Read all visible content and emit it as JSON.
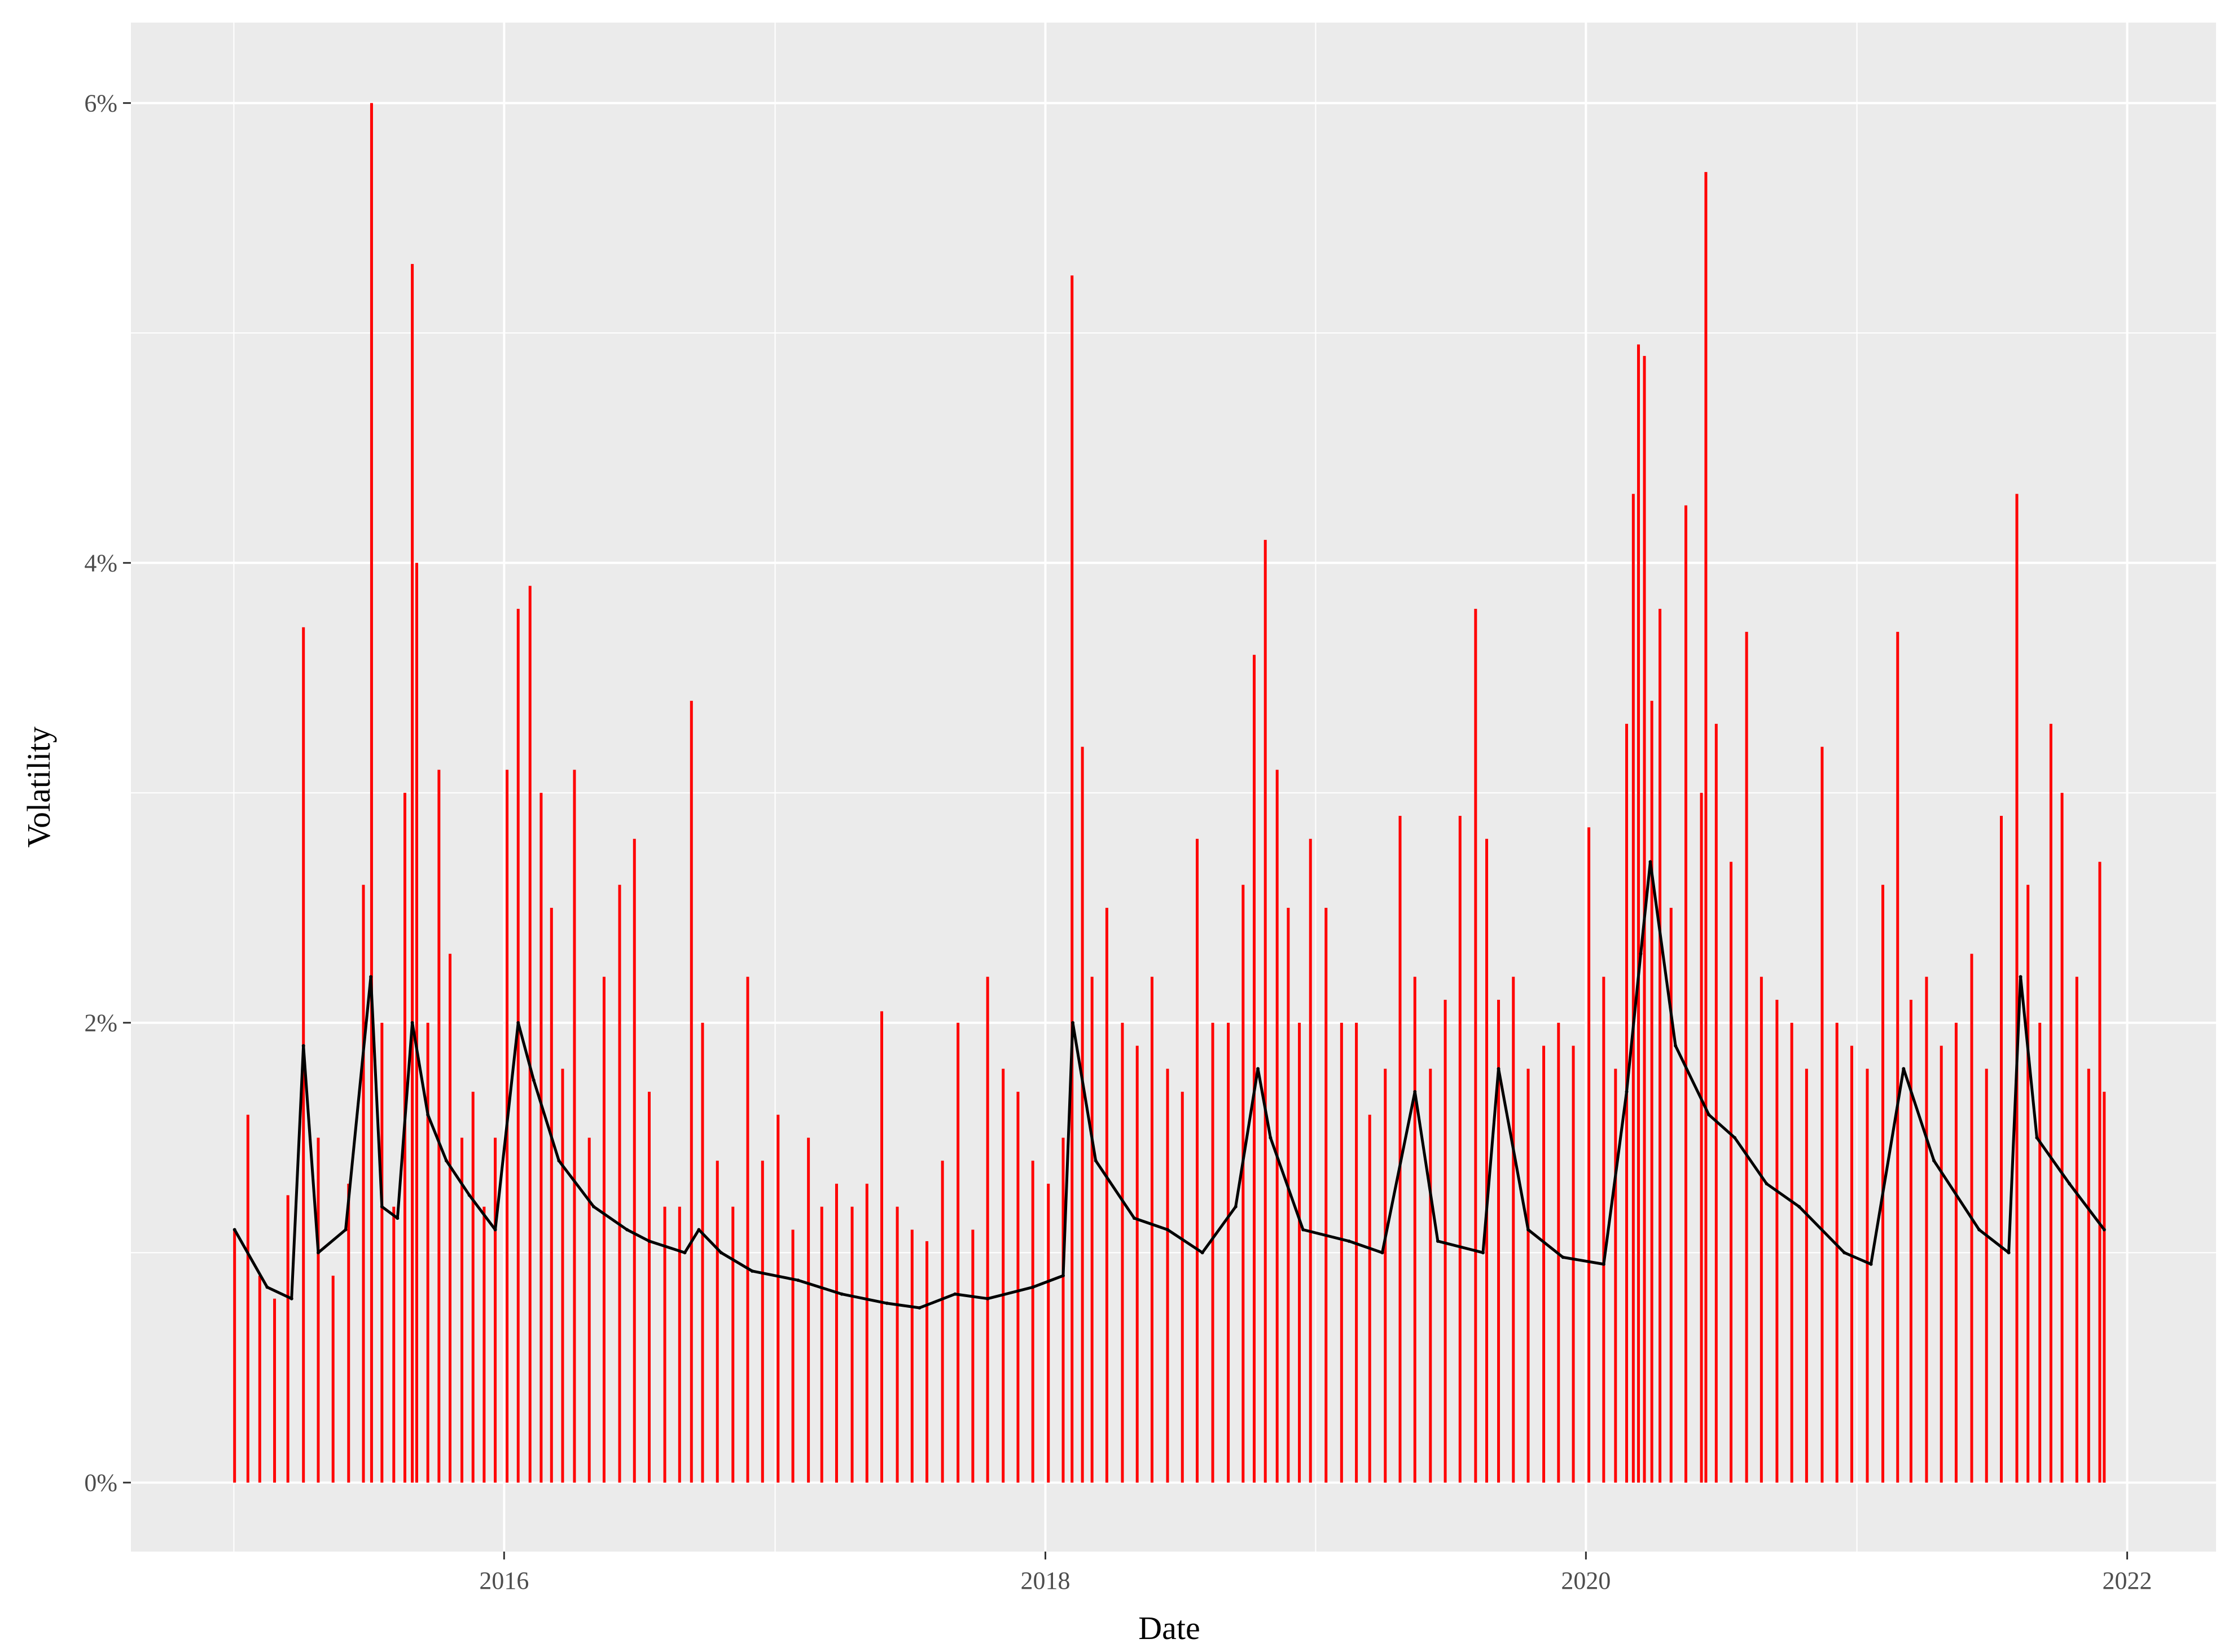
{
  "chart_data": {
    "type": "line",
    "title": "",
    "xlabel": "Date",
    "ylabel": "Volatility",
    "xlim": [
      "2014-08-15",
      "2022-05-01"
    ],
    "ylim": [
      -0.003,
      0.0635
    ],
    "x_ticks": [
      {
        "value": "2016-01-01",
        "label": "2016"
      },
      {
        "value": "2018-01-01",
        "label": "2018"
      },
      {
        "value": "2020-01-01",
        "label": "2020"
      },
      {
        "value": "2022-01-01",
        "label": "2022"
      }
    ],
    "y_ticks": [
      {
        "value": 0.0,
        "label": "0%"
      },
      {
        "value": 0.02,
        "label": "2%"
      },
      {
        "value": 0.04,
        "label": "4%"
      },
      {
        "value": 0.06,
        "label": "6%"
      }
    ],
    "grid": true,
    "legend": "none",
    "colors": {
      "panel": "#ebebeb",
      "grid": "#ffffff",
      "realized_series": "#ff0000",
      "conditional_series": "#000000"
    },
    "series": [
      {
        "id": "realized",
        "style": "spikes",
        "color": "#ff0000",
        "x": [
          "2015-01-02",
          "2015-01-20",
          "2015-02-05",
          "2015-02-25",
          "2015-03-15",
          "2015-04-05",
          "2015-04-25",
          "2015-05-15",
          "2015-06-05",
          "2015-06-25",
          "2015-07-06",
          "2015-07-20",
          "2015-08-05",
          "2015-08-20",
          "2015-08-30",
          "2015-09-05",
          "2015-09-20",
          "2015-10-05",
          "2015-10-20",
          "2015-11-05",
          "2015-11-20",
          "2015-12-05",
          "2015-12-20",
          "2016-01-05",
          "2016-01-20",
          "2016-02-05",
          "2016-02-20",
          "2016-03-05",
          "2016-03-20",
          "2016-04-05",
          "2016-04-25",
          "2016-05-15",
          "2016-06-05",
          "2016-06-25",
          "2016-07-15",
          "2016-08-05",
          "2016-08-25",
          "2016-09-10",
          "2016-09-25",
          "2016-10-15",
          "2016-11-05",
          "2016-11-25",
          "2016-12-15",
          "2017-01-05",
          "2017-01-25",
          "2017-02-15",
          "2017-03-05",
          "2017-03-25",
          "2017-04-15",
          "2017-05-05",
          "2017-05-25",
          "2017-06-15",
          "2017-07-05",
          "2017-07-25",
          "2017-08-15",
          "2017-09-05",
          "2017-09-25",
          "2017-10-15",
          "2017-11-05",
          "2017-11-25",
          "2017-12-15",
          "2018-01-05",
          "2018-01-25",
          "2018-02-06",
          "2018-02-20",
          "2018-03-05",
          "2018-03-25",
          "2018-04-15",
          "2018-05-05",
          "2018-05-25",
          "2018-06-15",
          "2018-07-05",
          "2018-07-25",
          "2018-08-15",
          "2018-09-05",
          "2018-09-25",
          "2018-10-10",
          "2018-10-25",
          "2018-11-10",
          "2018-11-25",
          "2018-12-10",
          "2018-12-25",
          "2019-01-15",
          "2019-02-05",
          "2019-02-25",
          "2019-03-15",
          "2019-04-05",
          "2019-04-25",
          "2019-05-15",
          "2019-06-05",
          "2019-06-25",
          "2019-07-15",
          "2019-08-05",
          "2019-08-20",
          "2019-09-05",
          "2019-09-25",
          "2019-10-15",
          "2019-11-05",
          "2019-11-25",
          "2019-12-15",
          "2020-01-05",
          "2020-01-25",
          "2020-02-10",
          "2020-02-25",
          "2020-03-05",
          "2020-03-12",
          "2020-03-20",
          "2020-03-30",
          "2020-04-10",
          "2020-04-25",
          "2020-05-15",
          "2020-06-05",
          "2020-06-11",
          "2020-06-25",
          "2020-07-15",
          "2020-08-05",
          "2020-08-25",
          "2020-09-15",
          "2020-10-05",
          "2020-10-25",
          "2020-11-15",
          "2020-12-05",
          "2020-12-25",
          "2021-01-15",
          "2021-02-05",
          "2021-02-25",
          "2021-03-15",
          "2021-04-05",
          "2021-04-25",
          "2021-05-15",
          "2021-06-05",
          "2021-06-25",
          "2021-07-15",
          "2021-08-05",
          "2021-08-20",
          "2021-09-05",
          "2021-09-20",
          "2021-10-05",
          "2021-10-25",
          "2021-11-10",
          "2021-11-25",
          "2021-12-01"
        ],
        "y": [
          0.011,
          0.016,
          0.009,
          0.008,
          0.0125,
          0.0372,
          0.015,
          0.009,
          0.013,
          0.026,
          0.06,
          0.02,
          0.012,
          0.03,
          0.053,
          0.04,
          0.02,
          0.031,
          0.023,
          0.015,
          0.017,
          0.012,
          0.015,
          0.031,
          0.038,
          0.039,
          0.03,
          0.025,
          0.018,
          0.031,
          0.015,
          0.022,
          0.026,
          0.028,
          0.017,
          0.012,
          0.012,
          0.034,
          0.02,
          0.014,
          0.012,
          0.022,
          0.014,
          0.016,
          0.011,
          0.015,
          0.012,
          0.013,
          0.012,
          0.013,
          0.0205,
          0.012,
          0.011,
          0.0105,
          0.014,
          0.02,
          0.011,
          0.022,
          0.018,
          0.017,
          0.014,
          0.013,
          0.015,
          0.0525,
          0.032,
          0.022,
          0.025,
          0.02,
          0.019,
          0.022,
          0.018,
          0.017,
          0.028,
          0.02,
          0.02,
          0.026,
          0.036,
          0.041,
          0.031,
          0.025,
          0.02,
          0.028,
          0.025,
          0.02,
          0.02,
          0.016,
          0.018,
          0.029,
          0.022,
          0.018,
          0.021,
          0.029,
          0.038,
          0.028,
          0.021,
          0.022,
          0.018,
          0.019,
          0.02,
          0.019,
          0.0285,
          0.022,
          0.018,
          0.033,
          0.043,
          0.0495,
          0.049,
          0.034,
          0.038,
          0.025,
          0.0425,
          0.03,
          0.057,
          0.033,
          0.027,
          0.037,
          0.022,
          0.021,
          0.02,
          0.018,
          0.032,
          0.02,
          0.019,
          0.018,
          0.026,
          0.037,
          0.021,
          0.022,
          0.019,
          0.02,
          0.023,
          0.018,
          0.029,
          0.043,
          0.026,
          0.02,
          0.033,
          0.03,
          0.022,
          0.018,
          0.027,
          0.017
        ]
      },
      {
        "id": "conditional",
        "style": "line",
        "color": "#000000",
        "x": [
          "2015-01-02",
          "2015-02-15",
          "2015-03-20",
          "2015-04-05",
          "2015-04-25",
          "2015-06-01",
          "2015-07-05",
          "2015-07-20",
          "2015-08-10",
          "2015-08-30",
          "2015-09-20",
          "2015-10-15",
          "2015-11-15",
          "2015-12-20",
          "2016-01-20",
          "2016-02-10",
          "2016-03-15",
          "2016-05-01",
          "2016-06-15",
          "2016-07-15",
          "2016-09-01",
          "2016-09-20",
          "2016-10-20",
          "2016-12-01",
          "2017-02-01",
          "2017-04-01",
          "2017-06-01",
          "2017-07-15",
          "2017-09-01",
          "2017-10-15",
          "2017-12-15",
          "2018-01-25",
          "2018-02-07",
          "2018-03-10",
          "2018-05-01",
          "2018-06-15",
          "2018-08-01",
          "2018-09-15",
          "2018-10-15",
          "2018-11-01",
          "2018-12-15",
          "2019-02-15",
          "2019-04-01",
          "2019-05-15",
          "2019-06-15",
          "2019-08-15",
          "2019-09-05",
          "2019-10-15",
          "2019-12-01",
          "2020-01-25",
          "2020-02-25",
          "2020-03-15",
          "2020-03-28",
          "2020-05-01",
          "2020-06-15",
          "2020-07-20",
          "2020-09-01",
          "2020-10-15",
          "2020-12-15",
          "2021-01-20",
          "2021-03-05",
          "2021-04-15",
          "2021-06-15",
          "2021-07-25",
          "2021-08-10",
          "2021-09-01",
          "2021-10-15",
          "2021-12-01"
        ],
        "y": [
          0.011,
          0.0085,
          0.008,
          0.019,
          0.01,
          0.011,
          0.022,
          0.012,
          0.0115,
          0.02,
          0.016,
          0.014,
          0.0125,
          0.011,
          0.02,
          0.0175,
          0.014,
          0.012,
          0.011,
          0.0105,
          0.01,
          0.011,
          0.01,
          0.0092,
          0.0088,
          0.0082,
          0.0078,
          0.0076,
          0.0082,
          0.008,
          0.0085,
          0.009,
          0.02,
          0.014,
          0.0115,
          0.011,
          0.01,
          0.012,
          0.018,
          0.015,
          0.011,
          0.0105,
          0.01,
          0.017,
          0.0105,
          0.01,
          0.018,
          0.011,
          0.0098,
          0.0095,
          0.017,
          0.023,
          0.027,
          0.019,
          0.016,
          0.015,
          0.013,
          0.012,
          0.01,
          0.0095,
          0.018,
          0.014,
          0.011,
          0.01,
          0.022,
          0.015,
          0.013,
          0.011
        ]
      }
    ]
  }
}
